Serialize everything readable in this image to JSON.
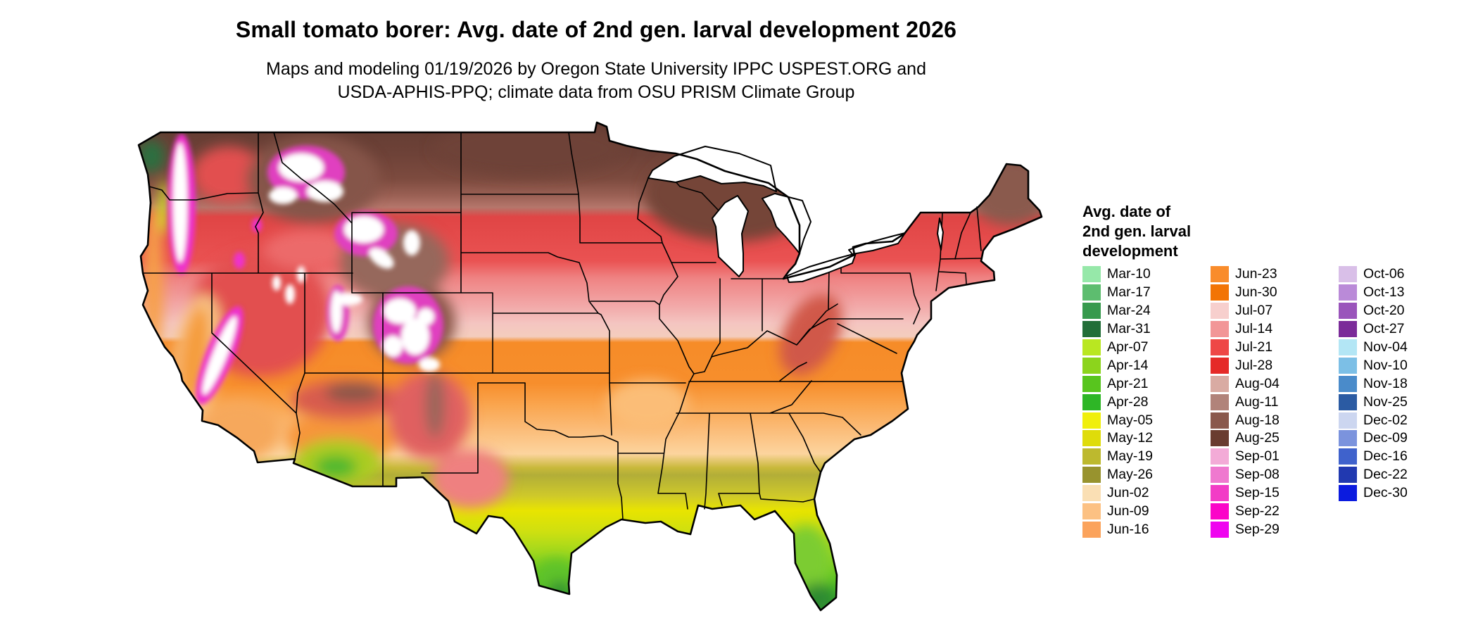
{
  "header": {
    "title": "Small tomato borer: Avg. date of 2nd gen. larval development 2026",
    "subtitle_line1": "Maps and modeling 01/19/2026 by Oregon State University IPPC USPEST.ORG and",
    "subtitle_line2": "USDA-APHIS-PPQ; climate data from OSU PRISM Climate Group"
  },
  "legend": {
    "title_lines": [
      "Avg. date of",
      "2nd gen. larval",
      "development"
    ],
    "columns": [
      [
        {
          "label": "Mar-10",
          "color": "#96e8a9"
        },
        {
          "label": "Mar-17",
          "color": "#5dbd6f"
        },
        {
          "label": "Mar-24",
          "color": "#379a4d"
        },
        {
          "label": "Mar-31",
          "color": "#226e38"
        },
        {
          "label": "Apr-07",
          "color": "#b9e721"
        },
        {
          "label": "Apr-14",
          "color": "#8cd41c"
        },
        {
          "label": "Apr-21",
          "color": "#58c51e"
        },
        {
          "label": "Apr-28",
          "color": "#2eb626"
        },
        {
          "label": "May-05",
          "color": "#f0ef0c"
        },
        {
          "label": "May-12",
          "color": "#dfdc0a"
        },
        {
          "label": "May-19",
          "color": "#bdb92e"
        },
        {
          "label": "May-26",
          "color": "#98932e"
        },
        {
          "label": "Jun-02",
          "color": "#fadfb4"
        },
        {
          "label": "Jun-09",
          "color": "#fcc183"
        },
        {
          "label": "Jun-16",
          "color": "#fba35c"
        }
      ],
      [
        {
          "label": "Jun-23",
          "color": "#f98c2b"
        },
        {
          "label": "Jun-30",
          "color": "#f27405"
        },
        {
          "label": "Jul-07",
          "color": "#f7cfcd"
        },
        {
          "label": "Jul-14",
          "color": "#f29697"
        },
        {
          "label": "Jul-21",
          "color": "#ee4746"
        },
        {
          "label": "Jul-28",
          "color": "#e52a28"
        },
        {
          "label": "Aug-04",
          "color": "#d9aba3"
        },
        {
          "label": "Aug-11",
          "color": "#b1837a"
        },
        {
          "label": "Aug-18",
          "color": "#8a584c"
        },
        {
          "label": "Aug-25",
          "color": "#693c30"
        },
        {
          "label": "Sep-01",
          "color": "#f3abd7"
        },
        {
          "label": "Sep-08",
          "color": "#ef79cf"
        },
        {
          "label": "Sep-15",
          "color": "#f23cc6"
        },
        {
          "label": "Sep-22",
          "color": "#fb04c8"
        },
        {
          "label": "Sep-29",
          "color": "#ef04ef"
        }
      ],
      [
        {
          "label": "Oct-06",
          "color": "#d9bfe8"
        },
        {
          "label": "Oct-13",
          "color": "#ba8ad8"
        },
        {
          "label": "Oct-20",
          "color": "#9a54bb"
        },
        {
          "label": "Oct-27",
          "color": "#7b2b99"
        },
        {
          "label": "Nov-04",
          "color": "#b3e6f5"
        },
        {
          "label": "Nov-10",
          "color": "#7cbfe6"
        },
        {
          "label": "Nov-18",
          "color": "#4a8bca"
        },
        {
          "label": "Nov-25",
          "color": "#2b5ba3"
        },
        {
          "label": "Dec-02",
          "color": "#ccd6f0"
        },
        {
          "label": "Dec-09",
          "color": "#7b93dd"
        },
        {
          "label": "Dec-16",
          "color": "#3f62cc"
        },
        {
          "label": "Dec-22",
          "color": "#2139b0"
        },
        {
          "label": "Dec-30",
          "color": "#0b1bdf"
        }
      ]
    ]
  }
}
